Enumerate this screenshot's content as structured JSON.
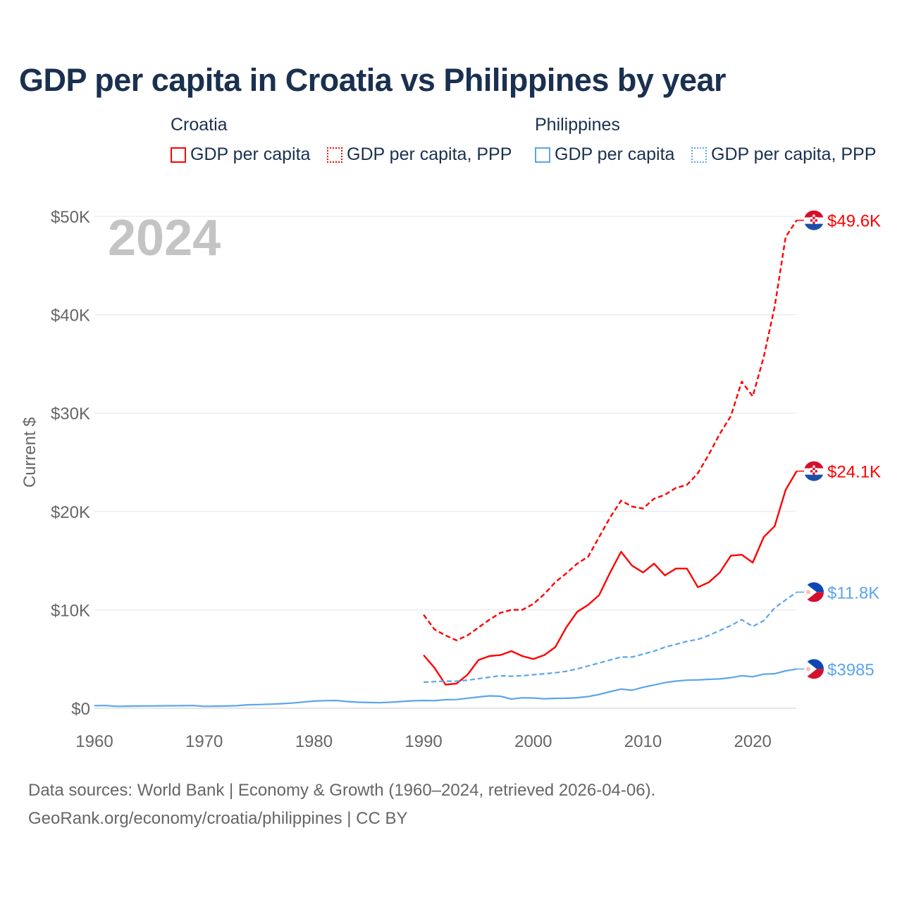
{
  "title": "GDP per capita in Croatia vs Philippines by year",
  "legend": {
    "groups": [
      {
        "name": "Croatia",
        "items": [
          "GDP per capita",
          "GDP per capita, PPP"
        ]
      },
      {
        "name": "Philippines",
        "items": [
          "GDP per capita",
          "GDP per capita, PPP"
        ]
      }
    ]
  },
  "colors": {
    "croatia": "#ff0000",
    "philippines": "#5ca5ec",
    "grid": "#e6e6e6",
    "axis_text": "#666666",
    "year_watermark": "#c4c4c4"
  },
  "footer": {
    "line1": "Data sources: World Bank | Economy & Growth (1960–2024, retrieved 2026-04-06).",
    "line2": "GeoRank.org/economy/croatia/philippines | CC BY"
  },
  "chart_data": {
    "type": "line",
    "title": "GDP per capita in Croatia vs Philippines by year",
    "current_year_label": "2024",
    "ylabel": "Current $",
    "xlabel": "",
    "xlim": [
      1960,
      2024
    ],
    "ylim": [
      0,
      50000
    ],
    "x_ticks": [
      "1960",
      "1970",
      "1980",
      "1990",
      "2000",
      "2010",
      "2020"
    ],
    "x_tick_values": [
      1960,
      1970,
      1980,
      1990,
      2000,
      2010,
      2020
    ],
    "y_ticks": [
      "$0",
      "$10K",
      "$20K",
      "$30K",
      "$40K",
      "$50K"
    ],
    "y_tick_values": [
      0,
      10000,
      20000,
      30000,
      40000,
      50000
    ],
    "grid": true,
    "series": [
      {
        "name": "Croatia GDP per capita",
        "country": "croatia",
        "dashed": false,
        "end_label": "$24.1K",
        "start": 1990,
        "values": [
          5400,
          4100,
          2400,
          2500,
          3400,
          4900,
          5300,
          5400,
          5800,
          5300,
          5000,
          5400,
          6200,
          8200,
          9800,
          10500,
          11500,
          13800,
          15900,
          14500,
          13800,
          14700,
          13500,
          14200,
          14200,
          12300,
          12800,
          13800,
          15500,
          15600,
          14800,
          17400,
          18500,
          22200,
          24100
        ]
      },
      {
        "name": "Croatia GDP per capita, PPP",
        "country": "croatia",
        "dashed": true,
        "end_label": "$49.6K",
        "start": 1990,
        "values": [
          9500,
          8000,
          7400,
          6900,
          7400,
          8200,
          9000,
          9700,
          10000,
          10000,
          10600,
          11600,
          12800,
          13700,
          14700,
          15400,
          17400,
          19400,
          21100,
          20500,
          20300,
          21300,
          21700,
          22400,
          22700,
          23900,
          25800,
          27900,
          29700,
          33200,
          31700,
          35700,
          40800,
          47900,
          49600
        ]
      },
      {
        "name": "Philippines GDP per capita, PPP",
        "country": "philippines",
        "dashed": true,
        "end_label": "$11.8K",
        "start": 1990,
        "values": [
          2650,
          2700,
          2750,
          2750,
          2850,
          3000,
          3150,
          3300,
          3250,
          3300,
          3400,
          3500,
          3600,
          3750,
          4000,
          4300,
          4600,
          4900,
          5200,
          5200,
          5500,
          5800,
          6200,
          6500,
          6800,
          7000,
          7400,
          7900,
          8400,
          9000,
          8300,
          8900,
          10200,
          11000,
          11800
        ]
      },
      {
        "name": "Philippines GDP per capita",
        "country": "philippines",
        "dashed": false,
        "end_label": "$3985",
        "start": 1960,
        "values": [
          260,
          270,
          190,
          210,
          220,
          230,
          240,
          250,
          260,
          270,
          190,
          210,
          220,
          260,
          350,
          370,
          410,
          460,
          520,
          620,
          720,
          770,
          790,
          680,
          610,
          580,
          560,
          610,
          680,
          750,
          790,
          770,
          870,
          880,
          1020,
          1140,
          1250,
          1220,
          930,
          1060,
          1040,
          960,
          1000,
          1010,
          1070,
          1190,
          1400,
          1680,
          1940,
          1830,
          2130,
          2360,
          2600,
          2760,
          2850,
          2880,
          2940,
          2980,
          3100,
          3300,
          3200,
          3460,
          3500,
          3800,
          3985
        ]
      }
    ]
  }
}
